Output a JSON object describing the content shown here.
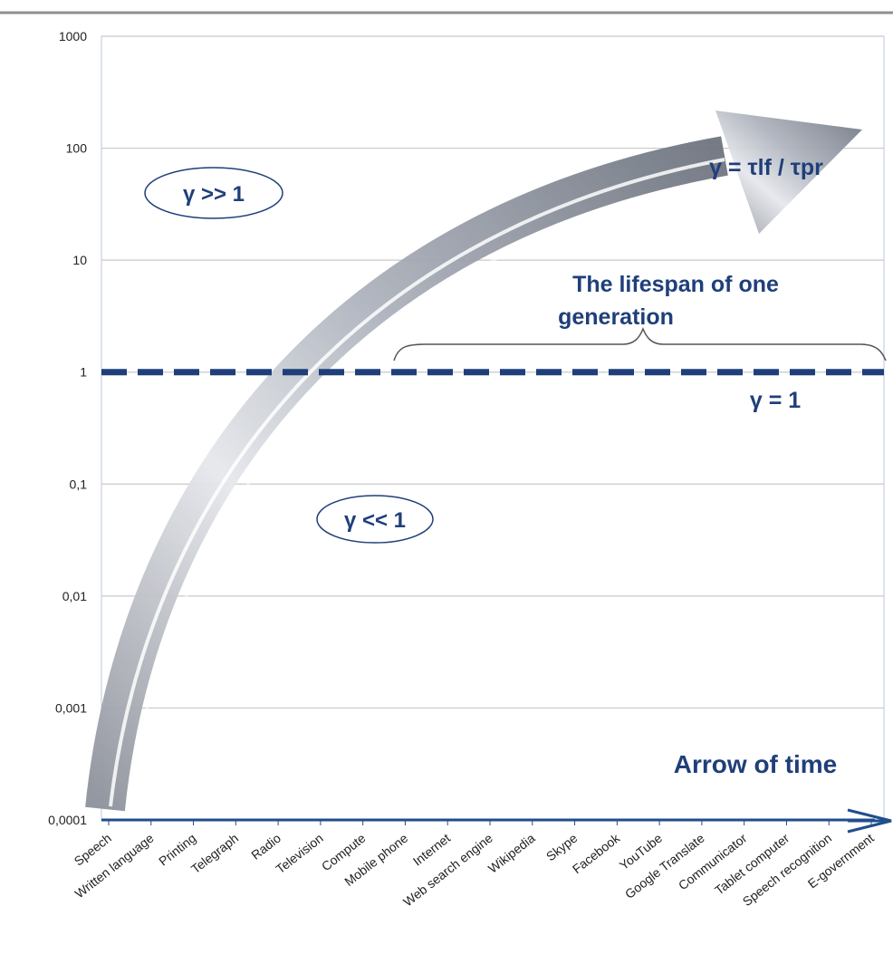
{
  "chart_data": {
    "type": "line",
    "y_scale": "log",
    "ylim": [
      0.0001,
      1000
    ],
    "y_ticks": [
      "1000",
      "100",
      "10",
      "1",
      "0,1",
      "0,01",
      "0,001",
      "0,0001"
    ],
    "grid": true,
    "categories": [
      "Speech",
      "Written language",
      "Printing",
      "Telegraph",
      "Radio",
      "Television",
      "Compute",
      "Mobile phone",
      "Internet",
      "Web search engine",
      "Wikipedia",
      "Skype",
      "Facebook",
      "YouTube",
      "Google Translate",
      "Communicator",
      "Tablet computer",
      "Speech recognition",
      "E-government"
    ],
    "reference_line": {
      "y": 1,
      "style": "dashed",
      "label": "γ = 1"
    },
    "annotations": {
      "upper_region": "γ >> 1",
      "lower_region": "γ << 1",
      "arrow_label": "γ = τlf / τpr",
      "brace_label_line1": "The lifespan of one",
      "brace_label_line2": "generation",
      "x_arrow_label": "Arrow of time"
    }
  },
  "colors": {
    "annotation": "#1f3f7a",
    "axis": "#1f4e8c",
    "grid": "#c8c8c8"
  }
}
